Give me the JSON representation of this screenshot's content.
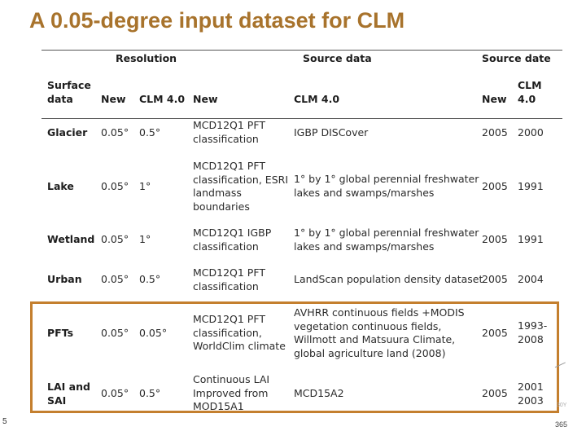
{
  "slide": {
    "title": "A 0.05-degree input dataset for CLM",
    "page_number": "5",
    "page_number_right": "365",
    "corner_mark": "30Y"
  },
  "table": {
    "group_headers": {
      "resolution": "Resolution",
      "source_data": "Source data",
      "source_date": "Source date"
    },
    "column_headers": {
      "surface_data": "Surface\ndata",
      "res_new": "New",
      "res_clm": "CLM 4.0",
      "src_new": "New",
      "src_clm": "CLM 4.0",
      "date_new": "New",
      "date_clm": "CLM\n4.0"
    },
    "rows": [
      {
        "surface": "Glacier",
        "res_new": "0.05°",
        "res_clm": "0.5°",
        "src_new": "MCD12Q1 PFT\nclassification",
        "src_clm": "IGBP DISCover",
        "date_new": "2005",
        "date_clm": "2000"
      },
      {
        "surface": "Lake",
        "res_new": "0.05°",
        "res_clm": "1°",
        "src_new": "MCD12Q1 PFT\nclassification, ESRI\nlandmass\nboundaries",
        "src_clm": "1° by 1° global perennial freshwater\nlakes and swamps/marshes",
        "date_new": "2005",
        "date_clm": "1991"
      },
      {
        "surface": "Wetland",
        "res_new": "0.05°",
        "res_clm": "1°",
        "src_new": "MCD12Q1 IGBP\nclassification",
        "src_clm": "1° by 1° global perennial freshwater\nlakes and swamps/marshes",
        "date_new": "2005",
        "date_clm": "1991"
      },
      {
        "surface": "Urban",
        "res_new": "0.05°",
        "res_clm": "0.5°",
        "src_new": "MCD12Q1 PFT\nclassification",
        "src_clm": "LandScan population density dataset",
        "date_new": "2005",
        "date_clm": "2004"
      },
      {
        "surface": "PFTs",
        "res_new": "0.05°",
        "res_clm": "0.05°",
        "src_new": "MCD12Q1 PFT\nclassification,\nWorldClim climate",
        "src_clm": "AVHRR continuous fields +MODIS\nvegetation continuous fields,\nWillmott and Matsuura Climate,\nglobal agriculture land (2008)",
        "date_new": "2005",
        "date_clm": "1993-\n2008"
      },
      {
        "surface": "LAI and\nSAI",
        "res_new": "0.05°",
        "res_clm": "0.5°",
        "src_new": "Continuous LAI\nImproved from\nMOD15A1",
        "src_clm": "MCD15A2",
        "date_new": "2005",
        "date_clm": "2001\n2003"
      }
    ]
  },
  "colors": {
    "title": "#a8732c",
    "highlight_box": "#c47f2e",
    "text": "#2b2b2b"
  }
}
